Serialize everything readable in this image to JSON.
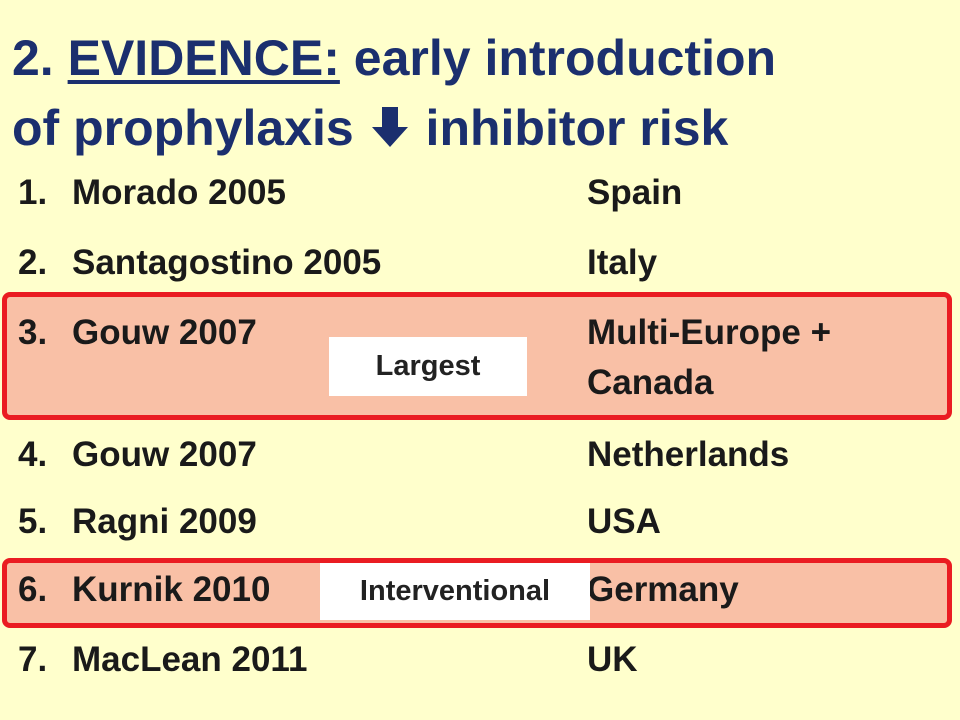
{
  "title": {
    "number": "2.",
    "keyword": "EVIDENCE:",
    "line1_rest": "early introduction",
    "line2_start": "of prophylaxis",
    "line2_end": "inhibitor risk"
  },
  "studies": [
    {
      "number": "1.",
      "name": "Morado 2005",
      "country": "Spain"
    },
    {
      "number": "2.",
      "name": "Santagostino 2005",
      "country": "Italy"
    },
    {
      "number": "3.",
      "name": "Gouw 2007",
      "country": "Multi-Europe + Canada",
      "badge": "Largest"
    },
    {
      "number": "4.",
      "name": "Gouw 2007",
      "country": "Netherlands"
    },
    {
      "number": "5.",
      "name": "Ragni 2009",
      "country": "USA"
    },
    {
      "number": "6.",
      "name": "Kurnik 2010",
      "country": "Germany",
      "badge": "Interventional"
    },
    {
      "number": "7.",
      "name": "MacLean 2011",
      "country": "UK"
    }
  ]
}
